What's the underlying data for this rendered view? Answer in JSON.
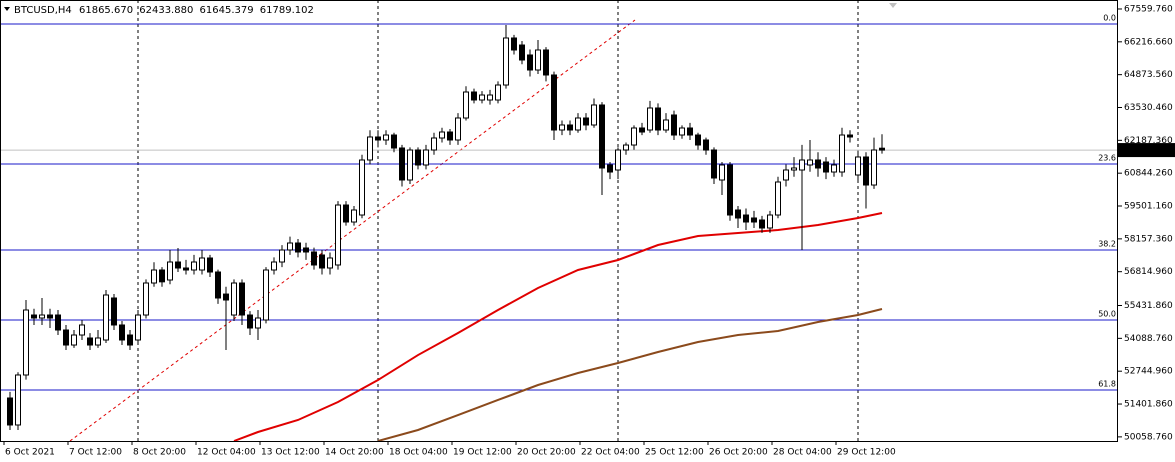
{
  "chart_data": {
    "type": "candlestick",
    "title": "BTCUSD,H4",
    "info": [
      "61865.670",
      "62433.880",
      "61645.379",
      "61789.102"
    ],
    "up_color": "#ffffff",
    "down_color": "#000000",
    "categories": [
      "6 Oct 2021",
      null,
      null,
      null,
      null,
      null,
      null,
      null,
      "7 Oct 12:00",
      null,
      null,
      null,
      null,
      null,
      null,
      null,
      "8 Oct 20:00",
      null,
      null,
      null,
      null,
      null,
      null,
      null,
      "12 Oct 04:00",
      null,
      null,
      null,
      null,
      null,
      null,
      null,
      "13 Oct 12:00",
      null,
      null,
      null,
      null,
      null,
      null,
      null,
      "14 Oct 20:00",
      null,
      null,
      null,
      null,
      null,
      null,
      null,
      "18 Oct 04:00",
      null,
      null,
      null,
      null,
      null,
      null,
      null,
      "19 Oct 12:00",
      null,
      null,
      null,
      null,
      null,
      null,
      null,
      "20 Oct 20:00",
      null,
      null,
      null,
      null,
      null,
      null,
      null,
      "22 Oct 04:00",
      null,
      null,
      null,
      null,
      null,
      null,
      null,
      "25 Oct 12:00",
      null,
      null,
      null,
      null,
      null,
      null,
      null,
      "26 Oct 20:00",
      null,
      null,
      null,
      null,
      null,
      null,
      null,
      "28 Oct 04:00",
      null,
      null,
      null,
      null,
      null,
      null,
      null,
      "29 Oct 12:00",
      null,
      null,
      null,
      null,
      null
    ],
    "open": [
      51649,
      50545,
      52590,
      55043,
      54921,
      55043,
      55043,
      54430,
      53816,
      54225,
      54103,
      53816,
      54021,
      55739,
      54635,
      54225,
      54021,
      55043,
      56352,
      56884,
      56475,
      57211,
      56966,
      56884,
      56884,
      57375,
      56802,
      55900,
      55043,
      56352,
      55043,
      54512,
      54839,
      56884,
      57211,
      57702,
      57988,
      57784,
      57620,
      57498,
      56966,
      57089,
      59542,
      58847,
      59133,
      61383,
      62324,
      62201,
      62405,
      61874,
      60565,
      61792,
      61179,
      61792,
      62283,
      62528,
      62201,
      63101,
      64164,
      63837,
      63837,
      63837,
      64450,
      66373,
      66086,
      65678,
      65064,
      65882,
      64860,
      62610,
      62815,
      62610,
      63101,
      62815,
      63633,
      61179,
      60974,
      61792,
      61996,
      62692,
      62610,
      63510,
      62610,
      63224,
      62405,
      62692,
      62405,
      62201,
      61792,
      60565,
      61179,
      59338,
      59133,
      59011,
      58929,
      58602,
      59133,
      60565,
      60974,
      60974,
      61179,
      61383,
      61301,
      60892,
      60892,
      62405,
      60770,
      61506,
      60360,
      61865.67
    ],
    "high": [
      51900,
      52700,
      55657,
      55300,
      55739,
      55300,
      55250,
      54635,
      54430,
      54839,
      54300,
      54430,
      56066,
      55900,
      54800,
      54430,
      55248,
      56500,
      57200,
      57000,
      57702,
      57784,
      57300,
      57500,
      57700,
      57500,
      56900,
      56200,
      56500,
      56500,
      55200,
      55248,
      57000,
      57400,
      57900,
      58250,
      58150,
      58000,
      57800,
      57700,
      57600,
      59700,
      59700,
      59500,
      61600,
      62600,
      62600,
      62600,
      62500,
      62000,
      61900,
      61900,
      62000,
      62500,
      62700,
      62650,
      63300,
      64400,
      64300,
      64200,
      64250,
      64600,
      66905,
      66500,
      66250,
      65900,
      66291,
      66000,
      65000,
      63000,
      63000,
      63300,
      63300,
      63900,
      63750,
      61300,
      61900,
      62100,
      62800,
      62900,
      63800,
      63700,
      63300,
      63400,
      62800,
      62900,
      62500,
      62300,
      61900,
      61300,
      61300,
      59500,
      59400,
      59300,
      59100,
      59300,
      60700,
      61200,
      61500,
      62000,
      62200,
      61700,
      61500,
      61400,
      62700,
      62600,
      61700,
      61700,
      62300,
      62433.88
    ],
    "low": [
      50340,
      50340,
      52400,
      54635,
      54635,
      54512,
      54225,
      53612,
      53700,
      54021,
      53612,
      53700,
      53900,
      54430,
      53816,
      53612,
      53900,
      54900,
      56200,
      56200,
      56300,
      56800,
      56700,
      56700,
      56700,
      56600,
      55500,
      53612,
      54800,
      54635,
      54225,
      54021,
      54700,
      56700,
      57000,
      57500,
      57400,
      57300,
      56900,
      56700,
      56700,
      56900,
      58700,
      58700,
      59000,
      61200,
      61900,
      62000,
      61700,
      60300,
      60400,
      61000,
      61000,
      61600,
      62100,
      62000,
      62000,
      63000,
      63700,
      63700,
      63650,
      63700,
      64300,
      65700,
      65300,
      64800,
      64900,
      64600,
      62200,
      62400,
      62400,
      62500,
      62600,
      62700,
      59951,
      60600,
      60600,
      61600,
      61800,
      62400,
      62500,
      62400,
      62500,
      62200,
      62250,
      62200,
      61800,
      61600,
      60400,
      59951,
      58900,
      58602,
      58520,
      58602,
      58400,
      58400,
      59000,
      60300,
      60700,
      57702,
      60900,
      60700,
      60600,
      60700,
      60700,
      62100,
      60565,
      59400,
      60200,
      61645.379
    ],
    "close": [
      50545,
      52590,
      55248,
      54921,
      55043,
      54921,
      54430,
      53816,
      54225,
      54635,
      53816,
      54103,
      55862,
      54635,
      54021,
      53816,
      55043,
      56352,
      56884,
      56400,
      57211,
      56966,
      56884,
      57211,
      57375,
      56802,
      55739,
      55657,
      56352,
      55043,
      54512,
      54921,
      56884,
      57211,
      57702,
      57988,
      57620,
      57620,
      57089,
      56966,
      57375,
      59542,
      58847,
      59338,
      61383,
      62324,
      62201,
      62405,
      61874,
      60565,
      61792,
      61179,
      61792,
      62283,
      62528,
      62201,
      63101,
      64164,
      63837,
      64041,
      64041,
      64450,
      66373,
      65882,
      65473,
      65064,
      65882,
      64860,
      62610,
      62815,
      62610,
      63101,
      62815,
      63633,
      61056,
      60892,
      61792,
      61996,
      62692,
      62528,
      63510,
      62610,
      63019,
      62405,
      62692,
      62405,
      61996,
      61792,
      60647,
      61179,
      59133,
      59011,
      58847,
      58847,
      58602,
      59133,
      60483,
      60974,
      61056,
      61383,
      61383,
      61056,
      60892,
      61179,
      62405,
      62324,
      61506,
      60360,
      61792,
      61789.102
    ],
    "overlays": [
      {
        "color": "#e00000",
        "x": [
          28,
          31,
          36,
          41,
          46,
          51,
          56,
          61,
          66,
          71,
          76,
          81,
          86,
          91,
          96,
          101,
          106,
          109
        ],
        "values": [
          49890,
          50258,
          50749,
          51485,
          52385,
          53405,
          54307,
          55248,
          56148,
          56884,
          57293,
          57906,
          58275,
          58398,
          58520,
          58725,
          59011,
          59215
        ]
      },
      {
        "color": "#8b4a1c",
        "x": [
          46,
          51,
          56,
          61,
          66,
          71,
          76,
          81,
          86,
          91,
          96,
          101,
          106,
          109
        ],
        "values": [
          49890,
          50340,
          50953,
          51567,
          52180,
          52671,
          53080,
          53530,
          53939,
          54225,
          54389,
          54757,
          55043,
          55289
        ]
      }
    ],
    "fibo": {
      "color": "#1818c8",
      "levels": [
        {
          "label": "0.0",
          "price": 66945
        },
        {
          "label": "23.6",
          "price": 61220
        },
        {
          "label": "38.2",
          "price": 57702
        },
        {
          "label": "50.0",
          "price": 54839
        },
        {
          "label": "61.8",
          "price": 51976
        }
      ]
    },
    "ylim": [
      49890,
      67927
    ],
    "yticks": [
      {
        "value": 67559.76,
        "label": "67559.760"
      },
      {
        "value": 66216.66,
        "label": "66216.660"
      },
      {
        "value": 64873.56,
        "label": "64873.560"
      },
      {
        "value": 63530.46,
        "label": "63530.460"
      },
      {
        "value": 62187.36,
        "label": "62187.360"
      },
      {
        "value": 60844.26,
        "label": "60844.260"
      },
      {
        "value": 59501.16,
        "label": "59501.160"
      },
      {
        "value": 58157.36,
        "label": "58157.360"
      },
      {
        "value": 56814.96,
        "label": "56814.960"
      },
      {
        "value": 55431.86,
        "label": "55431.860"
      },
      {
        "value": 54088.76,
        "label": "54088.760"
      },
      {
        "value": 52744.96,
        "label": "52744.960"
      },
      {
        "value": 51401.86,
        "label": "51401.860"
      },
      {
        "value": 50058.76,
        "label": "50058.760"
      }
    ]
  }
}
